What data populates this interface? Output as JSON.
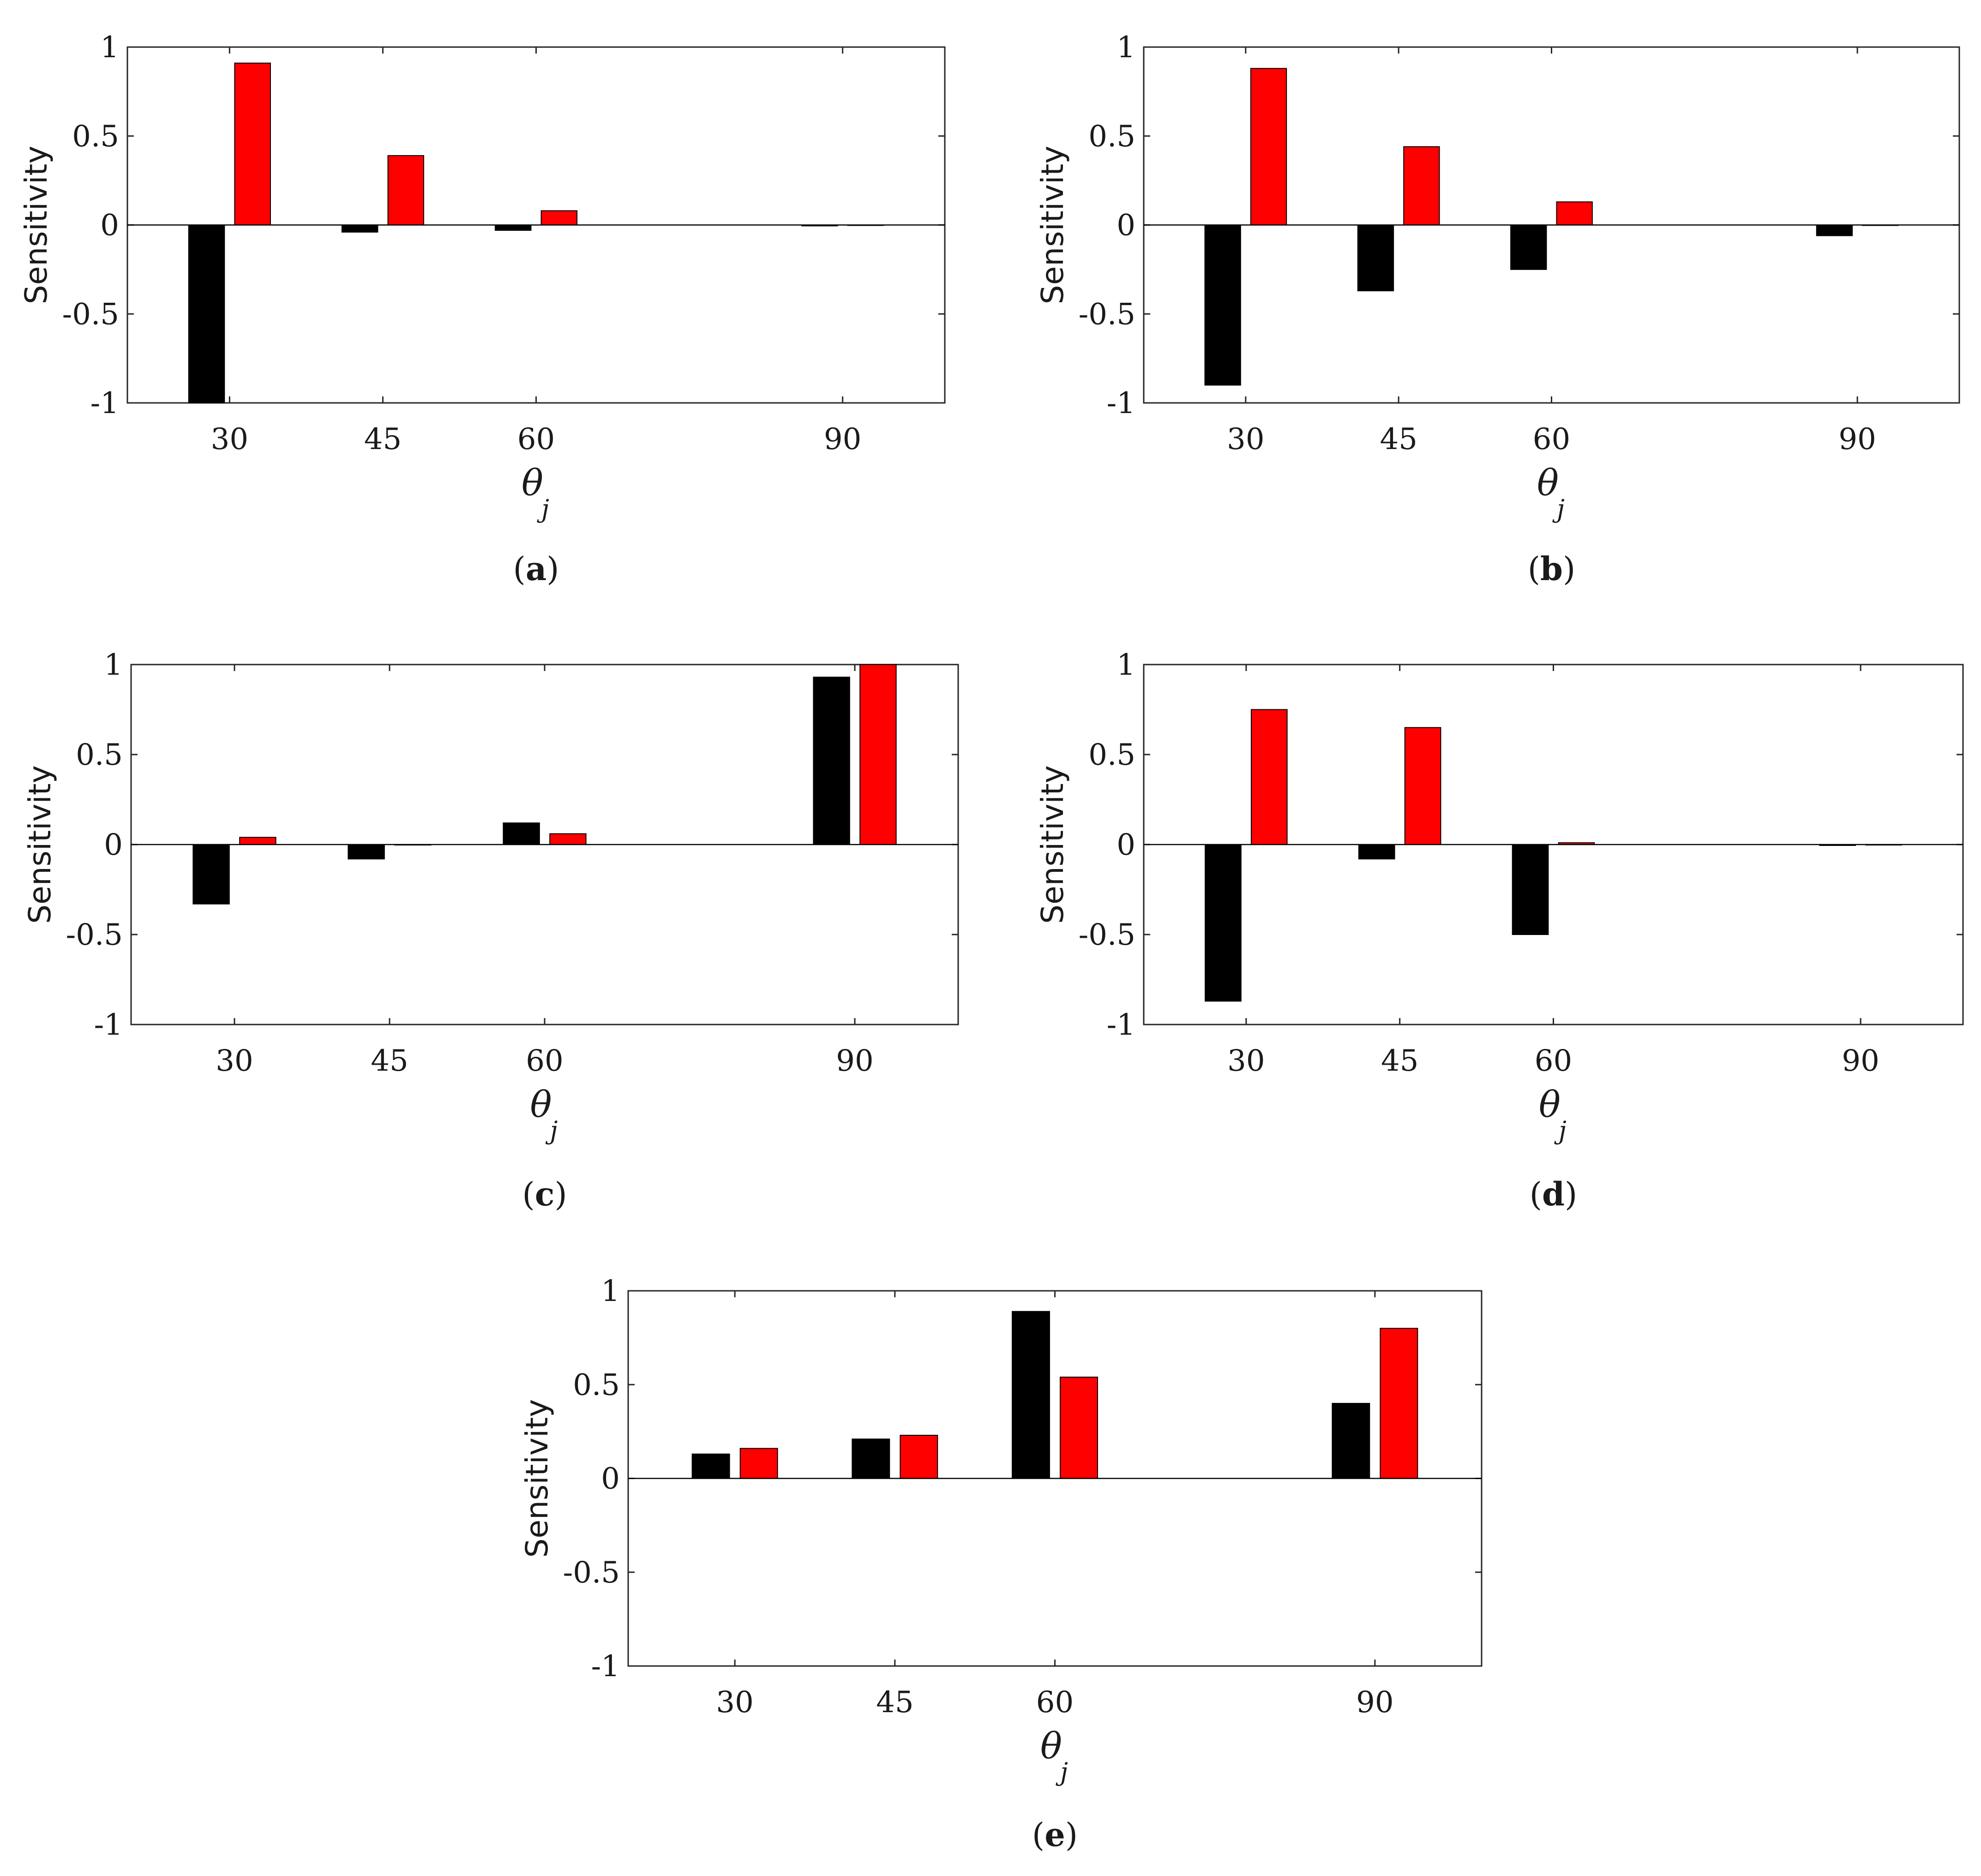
{
  "series_colors": {
    "black": "#000000",
    "red": "#ff0000"
  },
  "chart_data": [
    {
      "type": "bar",
      "panel_label": "a",
      "ylabel": "Sensitivity",
      "xlabel_symbol": "θ",
      "xlabel_subscript": "j",
      "categories": [
        "30",
        "45",
        "60",
        "90"
      ],
      "x": [
        30,
        45,
        60,
        90
      ],
      "ylim": [
        -1,
        1
      ],
      "yticks": [
        "1",
        "0.5",
        "0",
        "-0.5",
        "-1"
      ],
      "series": [
        {
          "name": "black",
          "color": "#000000",
          "values": [
            -1.0,
            -0.04,
            -0.03,
            -0.005
          ]
        },
        {
          "name": "red",
          "color": "#ff0000",
          "values": [
            0.91,
            0.39,
            0.08,
            0.0
          ]
        }
      ]
    },
    {
      "type": "bar",
      "panel_label": "b",
      "ylabel": "Sensitivity",
      "xlabel_symbol": "θ",
      "xlabel_subscript": "j",
      "categories": [
        "30",
        "45",
        "60",
        "90"
      ],
      "x": [
        30,
        45,
        60,
        90
      ],
      "ylim": [
        -1,
        1
      ],
      "yticks": [
        "1",
        "0.5",
        "0",
        "-0.5",
        "-1"
      ],
      "series": [
        {
          "name": "black",
          "color": "#000000",
          "values": [
            -0.9,
            -0.37,
            -0.25,
            -0.06
          ]
        },
        {
          "name": "red",
          "color": "#ff0000",
          "values": [
            0.88,
            0.44,
            0.13,
            0.0
          ]
        }
      ]
    },
    {
      "type": "bar",
      "panel_label": "c",
      "ylabel": "Sensitivity",
      "xlabel_symbol": "θ",
      "xlabel_subscript": "j",
      "categories": [
        "30",
        "45",
        "60",
        "90"
      ],
      "x": [
        30,
        45,
        60,
        90
      ],
      "ylim": [
        -1,
        1
      ],
      "yticks": [
        "1",
        "0.5",
        "0",
        "-0.5",
        "-1"
      ],
      "series": [
        {
          "name": "black",
          "color": "#000000",
          "values": [
            -0.33,
            -0.08,
            0.12,
            0.93
          ]
        },
        {
          "name": "red",
          "color": "#ff0000",
          "values": [
            0.04,
            0.0,
            0.06,
            1.0
          ]
        }
      ]
    },
    {
      "type": "bar",
      "panel_label": "d",
      "ylabel": "Sensitivity",
      "xlabel_symbol": "θ",
      "xlabel_subscript": "j",
      "categories": [
        "30",
        "45",
        "60",
        "90"
      ],
      "x": [
        30,
        45,
        60,
        90
      ],
      "ylim": [
        -1,
        1
      ],
      "yticks": [
        "1",
        "0.5",
        "0",
        "-0.5",
        "-1"
      ],
      "series": [
        {
          "name": "black",
          "color": "#000000",
          "values": [
            -0.87,
            -0.08,
            -0.5,
            -0.005
          ]
        },
        {
          "name": "red",
          "color": "#ff0000",
          "values": [
            0.75,
            0.65,
            0.01,
            0.0
          ]
        }
      ]
    },
    {
      "type": "bar",
      "panel_label": "e",
      "ylabel": "Sensitivity",
      "xlabel_symbol": "θ",
      "xlabel_subscript": "j",
      "categories": [
        "30",
        "45",
        "60",
        "90"
      ],
      "x": [
        30,
        45,
        60,
        90
      ],
      "ylim": [
        -1,
        1
      ],
      "yticks": [
        "1",
        "0.5",
        "0",
        "-0.5",
        "-1"
      ],
      "series": [
        {
          "name": "black",
          "color": "#000000",
          "values": [
            0.13,
            0.21,
            0.89,
            0.4
          ]
        },
        {
          "name": "red",
          "color": "#ff0000",
          "values": [
            0.16,
            0.23,
            0.54,
            0.8
          ]
        }
      ]
    }
  ]
}
